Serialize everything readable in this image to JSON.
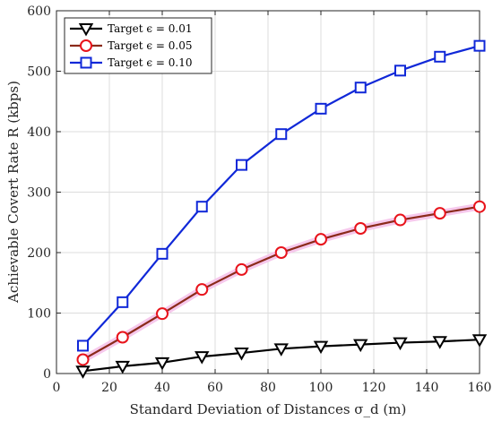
{
  "chart_data": {
    "type": "line",
    "xlabel": "Standard Deviation of Distances σ_d (m)",
    "ylabel": "Achievable Covert Rate R (kbps)",
    "xlim": [
      0,
      160
    ],
    "ylim": [
      0,
      600
    ],
    "xticks": [
      0,
      20,
      40,
      60,
      80,
      100,
      120,
      140,
      160
    ],
    "yticks": [
      0,
      100,
      200,
      300,
      400,
      500,
      600
    ],
    "grid": true,
    "legend_position": "top-left",
    "x": [
      10,
      25,
      40,
      55,
      70,
      85,
      100,
      115,
      130,
      145,
      160
    ],
    "series": [
      {
        "name": "Target ϵ = 0.01",
        "marker": "triangle-down",
        "color": "#000000",
        "values": [
          4,
          12,
          18,
          28,
          34,
          41,
          45,
          48,
          51,
          53,
          56
        ]
      },
      {
        "name": "Target ϵ = 0.05",
        "marker": "circle",
        "color": "#e8131b",
        "line_color": "#8b2a1a",
        "values": [
          23,
          60,
          99,
          139,
          172,
          200,
          222,
          240,
          254,
          265,
          276
        ]
      },
      {
        "name": "Target ϵ = 0.10",
        "marker": "square",
        "color": "#1028d8",
        "values": [
          46,
          118,
          198,
          276,
          345,
          396,
          438,
          473,
          501,
          524,
          542
        ]
      }
    ]
  }
}
